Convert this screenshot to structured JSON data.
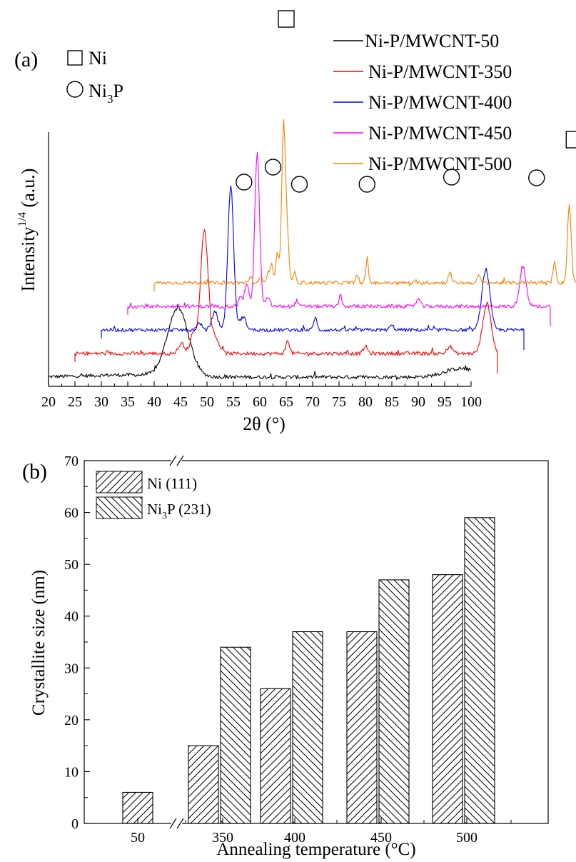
{
  "chart_data": [
    {
      "type": "line",
      "panel_label": "(a)",
      "xlabel": "2θ (°)",
      "ylabel": "Intensity",
      "ylabel_superscript": "1/4",
      "ylabel_unit": "(a.u.)",
      "x_ticks": [
        "20",
        "25",
        "30",
        "35",
        "40",
        "45",
        "50",
        "55",
        "60",
        "65",
        "70",
        "75",
        "80",
        "85",
        "90",
        "95",
        "100"
      ],
      "xlim": [
        20,
        100
      ],
      "symbol_legend": [
        {
          "symbol": "square",
          "label": "Ni"
        },
        {
          "symbol": "circle",
          "label": "Ni",
          "sub": "3",
          "suffix": "P"
        }
      ],
      "series": [
        {
          "name": "Ni-P/MWCNT-50",
          "color": "#000000",
          "offset": 0,
          "peaks": [
            [
              44.5,
              95,
              2.0
            ],
            [
              98,
              12,
              3
            ]
          ]
        },
        {
          "name": "Ni-P/MWCNT-350",
          "color": "#ff0000",
          "offset": 5,
          "peaks": [
            [
              44.5,
              175,
              0.7
            ],
            [
              42.5,
              30,
              0.6
            ],
            [
              46.5,
              22,
              0.8
            ],
            [
              40.2,
              14,
              0.6
            ],
            [
              60.3,
              18,
              0.35
            ],
            [
              75,
              10,
              0.4
            ],
            [
              91,
              10,
              0.5
            ],
            [
              98,
              70,
              0.8
            ]
          ]
        },
        {
          "name": "Ni-P/MWCNT-400",
          "color": "#0000ff",
          "offset": 10,
          "peaks": [
            [
              44.5,
              202,
              0.55
            ],
            [
              41.5,
              25,
              0.6
            ],
            [
              46.8,
              18,
              0.6
            ],
            [
              38.6,
              10,
              0.4
            ],
            [
              60.5,
              18,
              0.3
            ],
            [
              75,
              6,
              0.4
            ],
            [
              92.8,
              85,
              0.75
            ]
          ]
        },
        {
          "name": "Ni-P/MWCNT-450",
          "color": "#ff00ff",
          "offset": 15,
          "peaks": [
            [
              44.5,
              215,
              0.45
            ],
            [
              42.5,
              32,
              0.4
            ],
            [
              41.3,
              15,
              0.3
            ],
            [
              46.5,
              12,
              0.4
            ],
            [
              52,
              8,
              0.3
            ],
            [
              60.3,
              16,
              0.25
            ],
            [
              75,
              10,
              0.4
            ],
            [
              94.8,
              55,
              0.6
            ]
          ]
        },
        {
          "name": "Ni-P/MWCNT-500",
          "color": "#ff8000",
          "offset": 20,
          "peaks": [
            [
              44.5,
              220,
              0.35
            ],
            [
              43.3,
              40,
              0.3
            ],
            [
              42.2,
              25,
              0.3
            ],
            [
              45.2,
              62,
              0.3
            ],
            [
              41.5,
              12,
              0.3
            ],
            [
              46.6,
              14,
              0.3
            ],
            [
              40.3,
              8,
              0.3
            ],
            [
              38.2,
              8,
              0.3
            ],
            [
              58.3,
              10,
              0.25
            ],
            [
              60.3,
              32,
              0.25
            ],
            [
              76,
              14,
              0.3
            ],
            [
              81.5,
              10,
              0.3
            ],
            [
              95.8,
              28,
              0.3
            ],
            [
              98.6,
              110,
              0.35
            ]
          ]
        }
      ],
      "marker_symbols": [
        {
          "symbol": "square",
          "x": 45.0
        },
        {
          "symbol": "circle",
          "x": 37.0
        },
        {
          "symbol": "circle",
          "x": 42.5
        },
        {
          "symbol": "circle",
          "x": 47.5
        },
        {
          "symbol": "circle",
          "x": 60.3
        },
        {
          "symbol": "circle",
          "x": 76.3
        },
        {
          "symbol": "circle",
          "x": 92.4
        },
        {
          "symbol": "square",
          "x": 99.5
        }
      ]
    },
    {
      "type": "bar",
      "panel_label": "(b)",
      "xlabel": "Annealing temperature (°C)",
      "ylabel": "Crystallite size (nm)",
      "ylim": [
        0,
        70
      ],
      "y_ticks": [
        "0",
        "10",
        "20",
        "30",
        "40",
        "50",
        "60",
        "70"
      ],
      "categories": [
        "50",
        "350",
        "400",
        "450",
        "500"
      ],
      "axis_break": true,
      "series": [
        {
          "name": "Ni (111)",
          "label": "Ni (111)",
          "pattern": "forward-hatch",
          "values": [
            6,
            15,
            26,
            37,
            48
          ]
        },
        {
          "name": "Ni3P (231)",
          "label_pre": "Ni",
          "label_sub": "3",
          "label_post": "P (231)",
          "pattern": "back-hatch",
          "values": [
            null,
            34,
            37,
            47,
            59
          ]
        }
      ]
    }
  ]
}
